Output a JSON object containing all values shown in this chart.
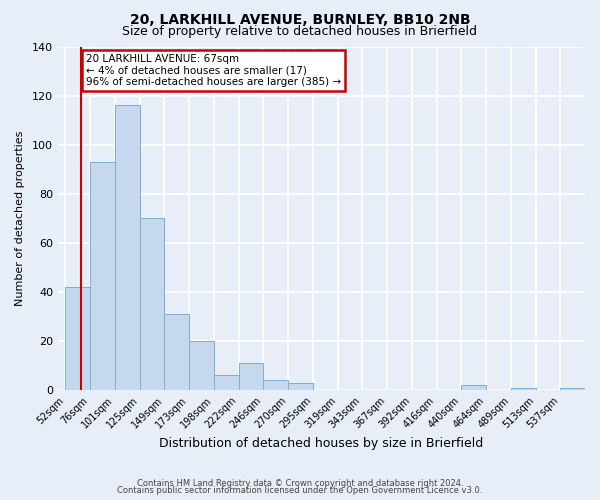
{
  "title": "20, LARKHILL AVENUE, BURNLEY, BB10 2NB",
  "subtitle": "Size of property relative to detached houses in Brierfield",
  "xlabel": "Distribution of detached houses by size in Brierfield",
  "ylabel": "Number of detached properties",
  "bar_labels": [
    "52sqm",
    "76sqm",
    "101sqm",
    "125sqm",
    "149sqm",
    "173sqm",
    "198sqm",
    "222sqm",
    "246sqm",
    "270sqm",
    "295sqm",
    "319sqm",
    "343sqm",
    "367sqm",
    "392sqm",
    "416sqm",
    "440sqm",
    "464sqm",
    "489sqm",
    "513sqm",
    "537sqm"
  ],
  "bar_heights": [
    42,
    93,
    116,
    70,
    31,
    20,
    6,
    11,
    4,
    3,
    0,
    0,
    0,
    0,
    0,
    0,
    2,
    0,
    1,
    0,
    1
  ],
  "bar_color": "#c5d8ed",
  "bar_edge_color": "#7bafd4",
  "ylim": [
    0,
    140
  ],
  "yticks": [
    0,
    20,
    40,
    60,
    80,
    100,
    120,
    140
  ],
  "annotation_title": "20 LARKHILL AVENUE: 67sqm",
  "annotation_line1": "← 4% of detached houses are smaller (17)",
  "annotation_line2": "96% of semi-detached houses are larger (385) →",
  "annotation_box_facecolor": "#ffffff",
  "annotation_border_color": "#cc0000",
  "vline_color": "#cc0000",
  "footer1": "Contains HM Land Registry data © Crown copyright and database right 2024.",
  "footer2": "Contains public sector information licensed under the Open Government Licence v3.0.",
  "background_color": "#e8eef7",
  "plot_background_color": "#e8eef7",
  "grid_color": "#ffffff",
  "title_fontsize": 10,
  "subtitle_fontsize": 9,
  "xlabel_fontsize": 9,
  "ylabel_fontsize": 8,
  "tick_fontsize": 7,
  "footer_fontsize": 6
}
